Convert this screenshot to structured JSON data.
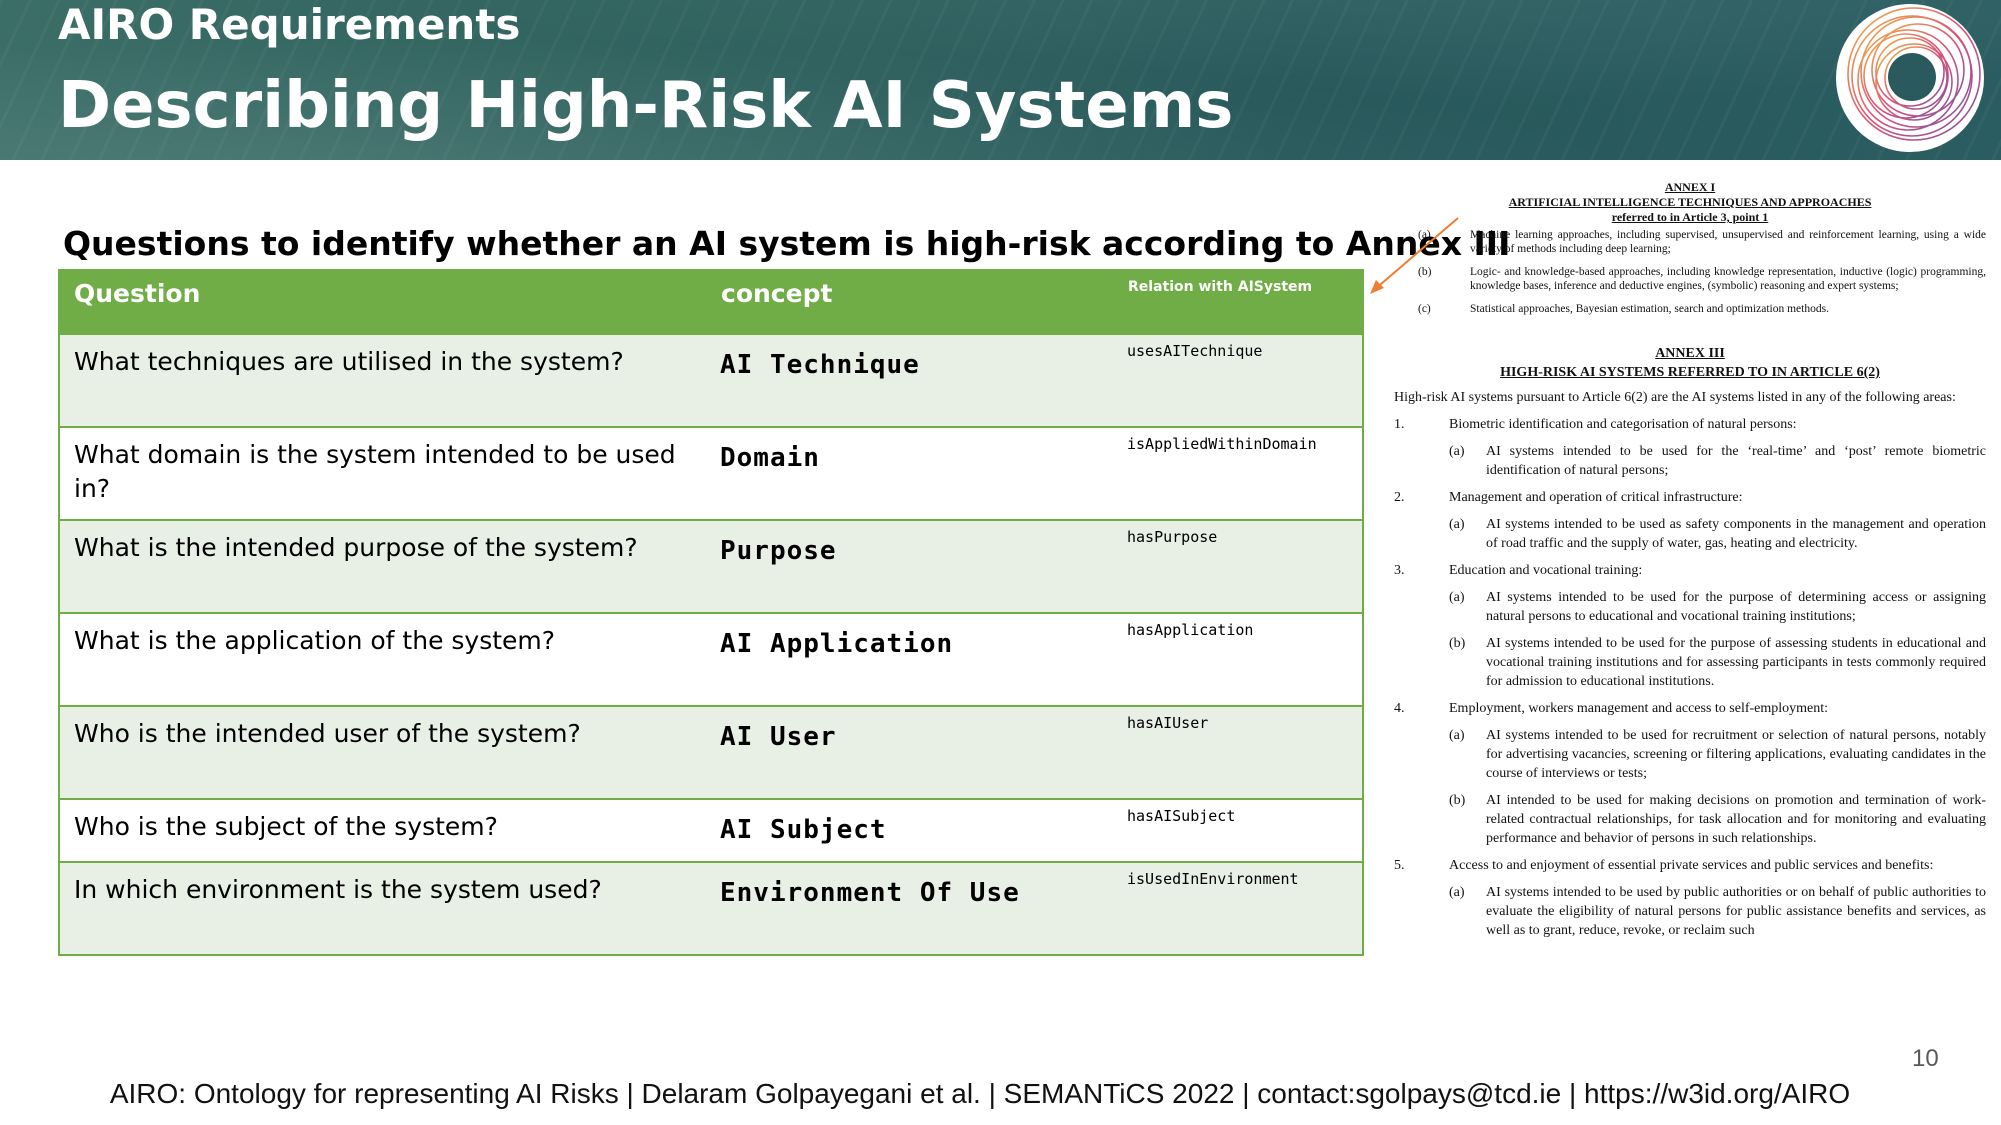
{
  "header": {
    "kicker": "AIRO Requirements",
    "title": "Describing High-Risk AI Systems"
  },
  "logo": {
    "icon": "airo-spiral-logo-icon",
    "colors": [
      "#e8a23a",
      "#d8496e",
      "#8a4a9b"
    ]
  },
  "subtitle": "Questions to identify whether an AI system is high-risk according to Annex III",
  "table": {
    "headers": {
      "question": "Question",
      "concept": "concept",
      "relation": "Relation with AISystem"
    },
    "rows": [
      {
        "question": "What techniques are utilised in the system?",
        "concept": "AI Technique",
        "relation": "usesAITechnique"
      },
      {
        "question": "What domain is the system intended to be used in?",
        "concept": "Domain",
        "relation": "isAppliedWithinDomain"
      },
      {
        "question": "What is the intended purpose of the system?",
        "concept": "Purpose",
        "relation": "hasPurpose"
      },
      {
        "question": "What is the application of the system?",
        "concept": "AI Application",
        "relation": "hasApplication"
      },
      {
        "question": "Who is the intended user of the system?",
        "concept": "AI User",
        "relation": "hasAIUser"
      },
      {
        "question": "Who is the subject of the system?",
        "concept": "AI Subject",
        "relation": "hasAISubject"
      },
      {
        "question": "In which environment is the system used?",
        "concept": "Environment Of Use",
        "relation": "isUsedInEnvironment"
      }
    ],
    "colors": {
      "header": "#70ad47",
      "border": "#70ad47",
      "band": "#e8efe5"
    }
  },
  "annex1": {
    "heading1": "ANNEX I",
    "heading2": "ARTIFICIAL INTELLIGENCE TECHNIQUES AND APPROACHES",
    "heading3": "referred to in Article 3, point 1",
    "items": [
      {
        "label": "(a)",
        "text": "Machine learning approaches, including supervised, unsupervised and reinforcement learning, using a wide variety of methods including deep learning;"
      },
      {
        "label": "(b)",
        "text": "Logic- and knowledge-based approaches, including knowledge representation, inductive (logic) programming, knowledge bases, inference and deductive engines, (symbolic) reasoning and expert systems;"
      },
      {
        "label": "(c)",
        "text": "Statistical approaches, Bayesian estimation, search and optimization methods."
      }
    ]
  },
  "annex3": {
    "heading1": "ANNEX III",
    "heading2": "HIGH-RISK AI SYSTEMS REFERRED TO IN ARTICLE 6(2)",
    "intro": "High-risk AI systems pursuant to Article 6(2) are the AI systems listed in any of the following areas:",
    "sections": [
      {
        "num": "1.",
        "title": "Biometric identification and categorisation of natural persons:",
        "subs": [
          {
            "label": "(a)",
            "text": "AI systems intended to be used for the ‘real-time’ and ‘post’ remote biometric identification of natural persons;"
          }
        ]
      },
      {
        "num": "2.",
        "title": "Management and operation of critical infrastructure:",
        "subs": [
          {
            "label": "(a)",
            "text": "AI systems intended to be used as safety components in the management and operation of road traffic and the supply of water, gas, heating and electricity."
          }
        ]
      },
      {
        "num": "3.",
        "title": "Education and vocational training:",
        "subs": [
          {
            "label": "(a)",
            "text": "AI systems intended to be used for the purpose of determining access or assigning natural persons to educational and vocational training institutions;"
          },
          {
            "label": "(b)",
            "text": "AI systems intended to be used for the purpose of assessing students in educational and vocational training institutions and for assessing participants in tests commonly required for admission to educational institutions."
          }
        ]
      },
      {
        "num": "4.",
        "title": "Employment, workers management and access to self-employment:",
        "subs": [
          {
            "label": "(a)",
            "text": "AI systems intended to be used for recruitment or selection of natural persons, notably for advertising vacancies, screening or filtering applications, evaluating candidates in the course of interviews or tests;"
          },
          {
            "label": "(b)",
            "text": "AI intended to be used for making decisions on promotion and termination of work-related contractual relationships, for task allocation and for monitoring and evaluating performance and behavior of persons in such relationships."
          }
        ]
      },
      {
        "num": "5.",
        "title": "Access to and enjoyment of essential private services and public services and benefits:",
        "subs": [
          {
            "label": "(a)",
            "text": "AI systems intended to be used by public authorities or on behalf of public authorities to evaluate the eligibility of natural persons for public assistance benefits and services, as well as to grant, reduce, revoke, or reclaim such"
          }
        ]
      }
    ]
  },
  "arrow": {
    "icon": "arrow-icon",
    "color": "#ed7d31"
  },
  "page_number": "10",
  "footer": "AIRO: Ontology for representing AI Risks | Delaram Golpayegani et al. | SEMANTiCS 2022 | contact:sgolpays@tcd.ie | https://w3id.org/AIRO"
}
